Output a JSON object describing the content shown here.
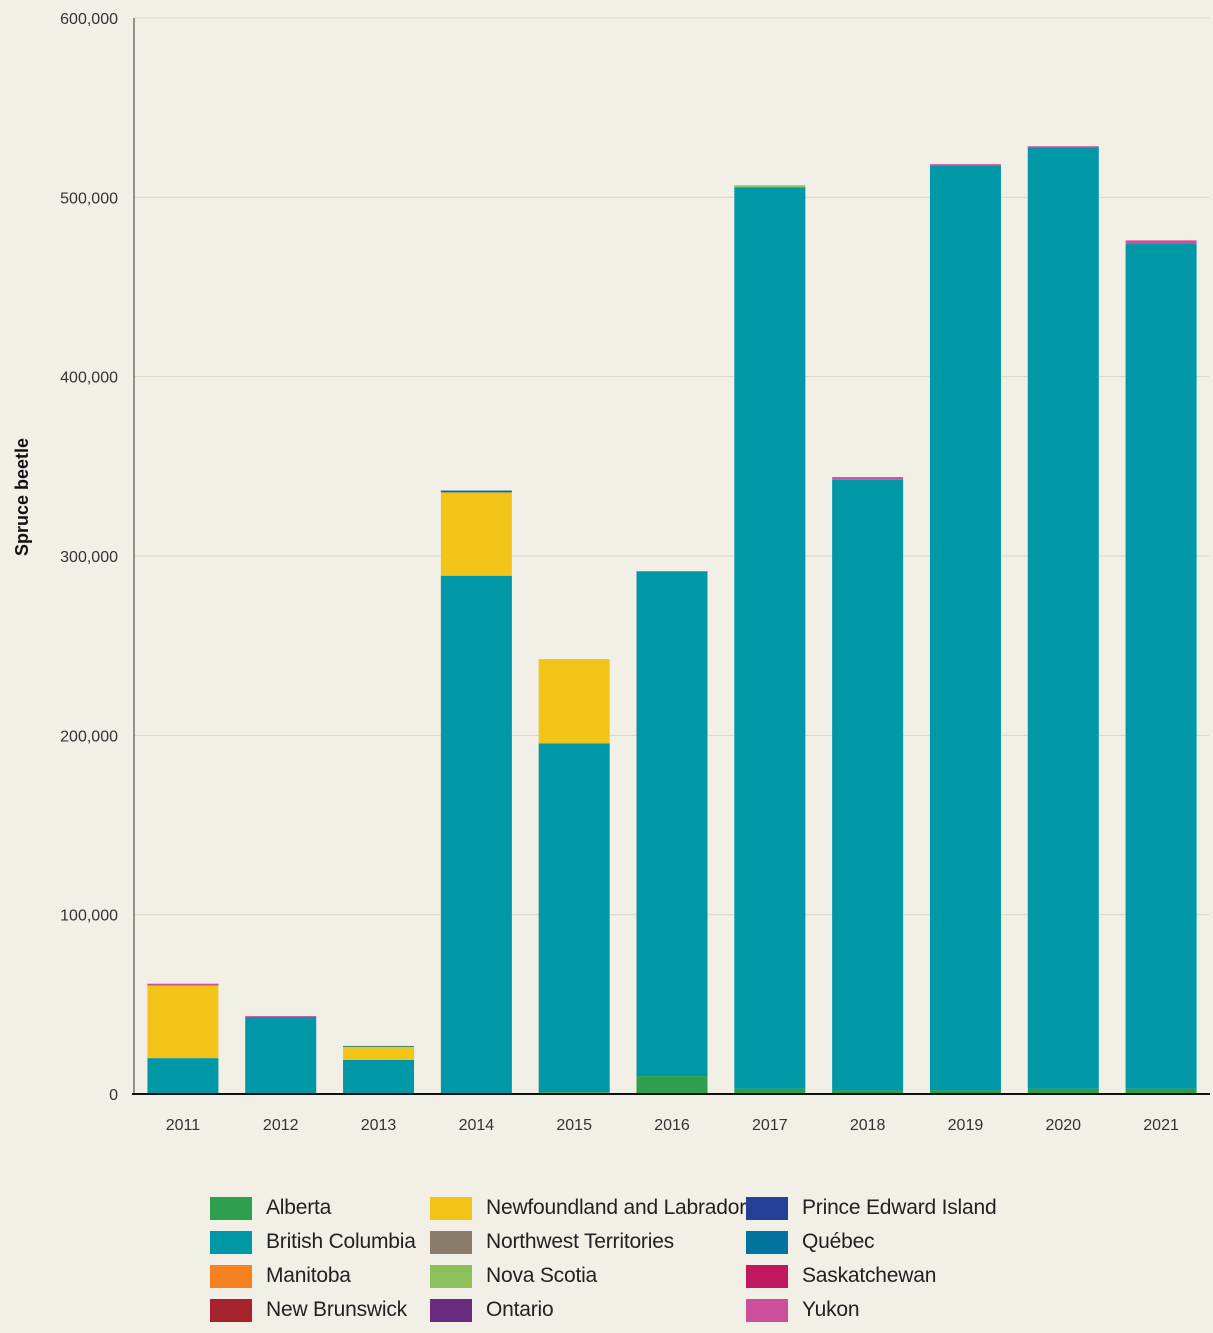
{
  "chart_data": {
    "type": "bar",
    "stacked": true,
    "title": "",
    "xlabel": "",
    "ylabel": "Spruce beetle",
    "ylim": [
      0,
      600000
    ],
    "yticks": [
      0,
      100000,
      200000,
      300000,
      400000,
      500000,
      600000
    ],
    "ytick_labels": [
      "0",
      "100,000",
      "200,000",
      "300,000",
      "400,000",
      "500,000",
      "600,000"
    ],
    "grid": true,
    "legend_position": "bottom",
    "categories": [
      "2011",
      "2012",
      "2013",
      "2014",
      "2015",
      "2016",
      "2017",
      "2018",
      "2019",
      "2020",
      "2021"
    ],
    "series": [
      {
        "name": "Alberta",
        "color": "#2e9e4f",
        "values": [
          0,
          0,
          0,
          0,
          1000,
          10000,
          3000,
          2000,
          2000,
          3000,
          3000
        ]
      },
      {
        "name": "British Columbia",
        "color": "#0097a7",
        "values": [
          20000,
          43000,
          19000,
          289000,
          194500,
          281500,
          502500,
          340500,
          515500,
          525000,
          471000
        ]
      },
      {
        "name": "Manitoba",
        "color": "#f5821f",
        "values": [
          0,
          0,
          0,
          0,
          0,
          0,
          0,
          0,
          0,
          0,
          0
        ]
      },
      {
        "name": "New Brunswick",
        "color": "#a4232d",
        "values": [
          0,
          0,
          0,
          0,
          0,
          0,
          0,
          0,
          0,
          0,
          0
        ]
      },
      {
        "name": "Newfoundland and Labrador",
        "color": "#f2c417",
        "values": [
          40500,
          0,
          7500,
          46500,
          47000,
          0,
          0,
          0,
          0,
          0,
          0
        ]
      },
      {
        "name": "Northwest Territories",
        "color": "#8a7c6b",
        "values": [
          0,
          0,
          0,
          0,
          0,
          0,
          0,
          0,
          0,
          0,
          0
        ]
      },
      {
        "name": "Nova Scotia",
        "color": "#8dbf5a",
        "values": [
          0,
          0,
          0,
          0,
          0,
          0,
          1200,
          0,
          0,
          0,
          0
        ]
      },
      {
        "name": "Ontario",
        "color": "#6a2c7e",
        "values": [
          0,
          0,
          0,
          0,
          0,
          0,
          0,
          0,
          0,
          0,
          0
        ]
      },
      {
        "name": "Prince Edward Island",
        "color": "#253f97",
        "values": [
          0,
          0,
          0,
          500,
          0,
          0,
          0,
          0,
          0,
          0,
          0
        ]
      },
      {
        "name": "Québec",
        "color": "#00739e",
        "values": [
          0,
          0,
          300,
          500,
          0,
          0,
          0,
          0,
          0,
          0,
          0
        ]
      },
      {
        "name": "Saskatchewan",
        "color": "#c0185f",
        "values": [
          0,
          0,
          0,
          0,
          0,
          0,
          0,
          0,
          0,
          0,
          0
        ]
      },
      {
        "name": "Yukon",
        "color": "#cc4f9c",
        "values": [
          1000,
          500,
          0,
          0,
          0,
          0,
          0,
          1500,
          1000,
          500,
          2000
        ]
      }
    ]
  }
}
